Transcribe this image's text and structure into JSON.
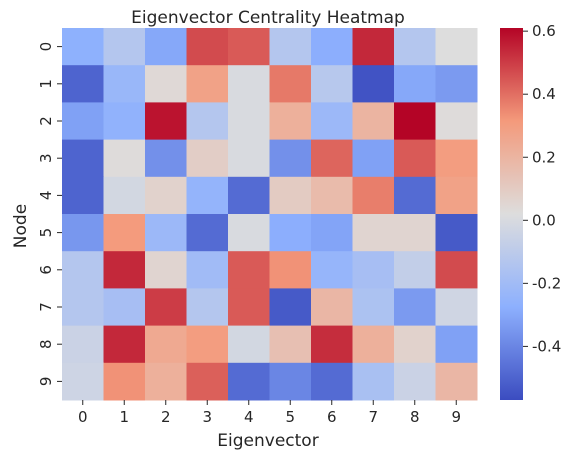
{
  "chart_data": {
    "type": "heatmap",
    "title": "Eigenvector Centrality Heatmap",
    "xlabel": "Eigenvector",
    "ylabel": "Node",
    "x_categories": [
      "0",
      "1",
      "2",
      "3",
      "4",
      "5",
      "6",
      "7",
      "8",
      "9"
    ],
    "y_categories": [
      "0",
      "1",
      "2",
      "3",
      "4",
      "5",
      "6",
      "7",
      "8",
      "9"
    ],
    "colormap": "coolwarm",
    "vmin": -0.57,
    "vmax": 0.61,
    "colorbar_ticks": [
      "-0.4",
      "-0.2",
      "0.0",
      "0.2",
      "0.4",
      "0.6"
    ],
    "colorbar_tick_values": [
      -0.4,
      -0.2,
      0.0,
      0.2,
      0.4,
      0.6
    ],
    "values": [
      [
        -0.27,
        -0.13,
        -0.3,
        0.47,
        0.44,
        -0.13,
        -0.28,
        0.54,
        -0.13,
        0.02
      ],
      [
        -0.5,
        -0.23,
        0.04,
        0.28,
        0.0,
        0.38,
        -0.12,
        -0.55,
        -0.3,
        -0.34
      ],
      [
        -0.32,
        -0.26,
        0.58,
        -0.13,
        0.0,
        0.22,
        -0.22,
        0.2,
        0.61,
        0.03
      ],
      [
        -0.5,
        0.03,
        -0.37,
        0.09,
        0.0,
        -0.37,
        0.42,
        -0.32,
        0.44,
        0.3
      ],
      [
        -0.5,
        -0.02,
        0.07,
        -0.25,
        -0.48,
        0.1,
        0.17,
        0.37,
        -0.48,
        0.28
      ],
      [
        -0.35,
        0.31,
        -0.22,
        -0.48,
        0.0,
        -0.28,
        -0.31,
        0.06,
        0.06,
        -0.53
      ],
      [
        -0.13,
        0.54,
        0.06,
        -0.2,
        0.44,
        0.33,
        -0.24,
        -0.18,
        -0.08,
        0.47
      ],
      [
        -0.13,
        -0.18,
        0.5,
        -0.13,
        0.44,
        -0.53,
        0.19,
        -0.16,
        -0.34,
        -0.03
      ],
      [
        -0.05,
        0.54,
        0.25,
        0.3,
        -0.02,
        0.15,
        0.53,
        0.22,
        0.07,
        -0.32
      ],
      [
        -0.04,
        0.33,
        0.22,
        0.43,
        -0.48,
        -0.4,
        -0.48,
        -0.17,
        -0.05,
        0.19
      ]
    ]
  }
}
